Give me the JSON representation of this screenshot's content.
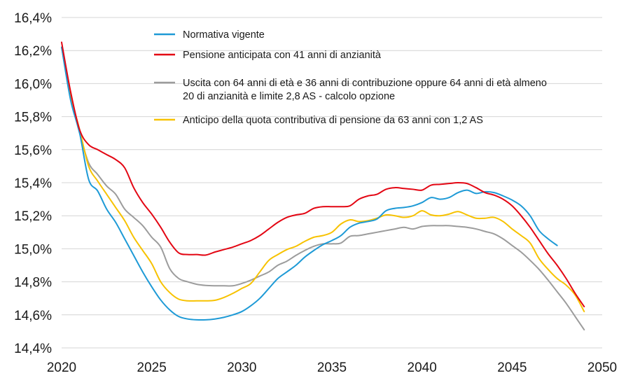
{
  "chart_data": {
    "type": "line",
    "title": "",
    "xlabel": "",
    "ylabel": "",
    "xlim": [
      2020,
      2050
    ],
    "ylim": [
      14.4,
      16.4
    ],
    "x_ticks": [
      2020,
      2025,
      2030,
      2035,
      2040,
      2045,
      2050
    ],
    "x_tick_labels": [
      "2020",
      "2025",
      "2030",
      "2035",
      "2040",
      "2045",
      "2050"
    ],
    "y_ticks": [
      14.4,
      14.6,
      14.8,
      15.0,
      15.2,
      15.4,
      15.6,
      15.8,
      16.0,
      16.2,
      16.4
    ],
    "y_tick_labels": [
      "14,4%",
      "14,6%",
      "14,8%",
      "15,0%",
      "15,2%",
      "15,4%",
      "15,6%",
      "15,8%",
      "16,0%",
      "16,2%",
      "16,4%"
    ],
    "grid": "horizontal",
    "legend_position": "top",
    "series": [
      {
        "name": "Normativa vigente",
        "color": "#1e9ad6",
        "legend_lines": [
          "Normativa vigente"
        ],
        "x": [
          2020,
          2020.5,
          2021,
          2021.5,
          2022,
          2022.5,
          2023,
          2023.5,
          2024,
          2024.5,
          2025,
          2025.5,
          2026,
          2026.5,
          2027,
          2027.5,
          2028,
          2028.5,
          2029,
          2029.5,
          2030,
          2030.5,
          2031,
          2031.5,
          2032,
          2032.5,
          2033,
          2033.5,
          2034,
          2034.5,
          2035,
          2035.5,
          2036,
          2036.5,
          2037,
          2037.5,
          2038,
          2038.5,
          2039,
          2039.5,
          2040,
          2040.5,
          2041,
          2041.5,
          2042,
          2042.5,
          2043,
          2043.5,
          2044,
          2044.5,
          2045,
          2045.5,
          2046,
          2046.5,
          2047,
          2047.5
        ],
        "values": [
          16.22,
          15.9,
          15.7,
          15.42,
          15.35,
          15.24,
          15.16,
          15.06,
          14.96,
          14.86,
          14.77,
          14.69,
          14.63,
          14.59,
          14.575,
          14.57,
          14.57,
          14.575,
          14.585,
          14.6,
          14.62,
          14.655,
          14.7,
          14.76,
          14.82,
          14.86,
          14.9,
          14.95,
          14.99,
          15.025,
          15.05,
          15.08,
          15.13,
          15.155,
          15.165,
          15.18,
          15.23,
          15.245,
          15.25,
          15.26,
          15.28,
          15.31,
          15.3,
          15.31,
          15.34,
          15.355,
          15.335,
          15.345,
          15.34,
          15.32,
          15.295,
          15.26,
          15.2,
          15.11,
          15.06,
          15.02
        ]
      },
      {
        "name": "Pensione anticipata con 41 anni di anzianità",
        "color": "#e30613",
        "legend_lines": [
          "Pensione anticipata con 41 anni di anzianità"
        ],
        "x": [
          2020,
          2020.5,
          2021,
          2021.5,
          2022,
          2022.5,
          2023,
          2023.5,
          2024,
          2024.5,
          2025,
          2025.5,
          2026,
          2026.5,
          2027,
          2027.5,
          2028,
          2028.5,
          2029,
          2029.5,
          2030,
          2030.5,
          2031,
          2031.5,
          2032,
          2032.5,
          2033,
          2033.5,
          2034,
          2034.5,
          2035,
          2035.5,
          2036,
          2036.5,
          2037,
          2037.5,
          2038,
          2038.5,
          2039,
          2039.5,
          2040,
          2040.5,
          2041,
          2041.5,
          2042,
          2042.5,
          2043,
          2043.5,
          2044,
          2044.5,
          2045,
          2045.5,
          2046,
          2046.5,
          2047,
          2047.5,
          2048,
          2048.5,
          2049
        ],
        "values": [
          16.25,
          15.95,
          15.72,
          15.63,
          15.6,
          15.57,
          15.54,
          15.49,
          15.37,
          15.28,
          15.21,
          15.13,
          15.04,
          14.975,
          14.965,
          14.965,
          14.962,
          14.98,
          14.995,
          15.01,
          15.03,
          15.05,
          15.08,
          15.12,
          15.16,
          15.19,
          15.205,
          15.215,
          15.245,
          15.255,
          15.255,
          15.255,
          15.26,
          15.3,
          15.32,
          15.33,
          15.36,
          15.37,
          15.365,
          15.36,
          15.355,
          15.385,
          15.39,
          15.395,
          15.4,
          15.395,
          15.37,
          15.34,
          15.325,
          15.3,
          15.26,
          15.2,
          15.13,
          15.05,
          14.97,
          14.9,
          14.82,
          14.73,
          14.65
        ]
      },
      {
        "name": "Uscita con 64 anni di età e 36 anni di contribuzione oppure 64 anni di età almeno 20 di anzianità e limite 2,8 AS - calcolo opzione",
        "color": "#9c9c9c",
        "legend_lines": [
          "Uscita con 64 anni di età e 36 anni di contribuzione oppure 64 anni di età almeno",
          "20 di anzianità e limite 2,8 AS - calcolo opzione"
        ],
        "x": [
          2020,
          2020.5,
          2021,
          2021.5,
          2022,
          2022.5,
          2023,
          2023.5,
          2024,
          2024.5,
          2025,
          2025.5,
          2026,
          2026.5,
          2027,
          2027.5,
          2028,
          2028.5,
          2029,
          2029.5,
          2030,
          2030.5,
          2031,
          2031.5,
          2032,
          2032.5,
          2033,
          2033.5,
          2034,
          2034.5,
          2035,
          2035.5,
          2036,
          2036.5,
          2037,
          2037.5,
          2038,
          2038.5,
          2039,
          2039.5,
          2040,
          2040.5,
          2041,
          2041.5,
          2042,
          2042.5,
          2043,
          2043.5,
          2044,
          2044.5,
          2045,
          2045.5,
          2046,
          2046.5,
          2047,
          2047.5,
          2048,
          2048.5,
          2049
        ],
        "values": [
          16.22,
          15.92,
          15.7,
          15.52,
          15.45,
          15.38,
          15.33,
          15.24,
          15.19,
          15.14,
          15.07,
          15.01,
          14.88,
          14.82,
          14.8,
          14.785,
          14.778,
          14.776,
          14.776,
          14.776,
          14.79,
          14.81,
          14.835,
          14.86,
          14.9,
          14.925,
          14.96,
          14.99,
          15.015,
          15.03,
          15.03,
          15.035,
          15.075,
          15.08,
          15.09,
          15.1,
          15.11,
          15.12,
          15.13,
          15.12,
          15.135,
          15.14,
          15.14,
          15.14,
          15.135,
          15.13,
          15.12,
          15.105,
          15.09,
          15.06,
          15.02,
          14.98,
          14.93,
          14.875,
          14.81,
          14.74,
          14.67,
          14.59,
          14.51
        ]
      },
      {
        "name": "Anticipo della quota contributiva di pensione da 63 anni con 1,2 AS",
        "color": "#f7c200",
        "legend_lines": [
          "Anticipo della quota contributiva di pensione da 63 anni con 1,2 AS"
        ],
        "x": [
          2020,
          2020.5,
          2021,
          2021.5,
          2022,
          2022.5,
          2023,
          2023.5,
          2024,
          2024.5,
          2025,
          2025.5,
          2026,
          2026.5,
          2027,
          2027.5,
          2028,
          2028.5,
          2029,
          2029.5,
          2030,
          2030.5,
          2031,
          2031.5,
          2032,
          2032.5,
          2033,
          2033.5,
          2034,
          2034.5,
          2035,
          2035.5,
          2036,
          2036.5,
          2037,
          2037.5,
          2038,
          2038.5,
          2039,
          2039.5,
          2040,
          2040.5,
          2041,
          2041.5,
          2042,
          2042.5,
          2043,
          2043.5,
          2044,
          2044.5,
          2045,
          2045.5,
          2046,
          2046.5,
          2047,
          2047.5,
          2048,
          2048.5,
          2049
        ],
        "values": [
          16.22,
          15.93,
          15.72,
          15.5,
          15.41,
          15.33,
          15.25,
          15.17,
          15.07,
          14.99,
          14.91,
          14.8,
          14.735,
          14.695,
          14.685,
          14.685,
          14.685,
          14.688,
          14.705,
          14.73,
          14.76,
          14.79,
          14.86,
          14.93,
          14.965,
          14.995,
          15.015,
          15.045,
          15.07,
          15.08,
          15.1,
          15.15,
          15.175,
          15.165,
          15.17,
          15.185,
          15.205,
          15.2,
          15.19,
          15.2,
          15.23,
          15.205,
          15.2,
          15.21,
          15.225,
          15.205,
          15.185,
          15.185,
          15.19,
          15.165,
          15.12,
          15.08,
          15.035,
          14.94,
          14.875,
          14.82,
          14.78,
          14.72,
          14.62
        ]
      }
    ]
  }
}
